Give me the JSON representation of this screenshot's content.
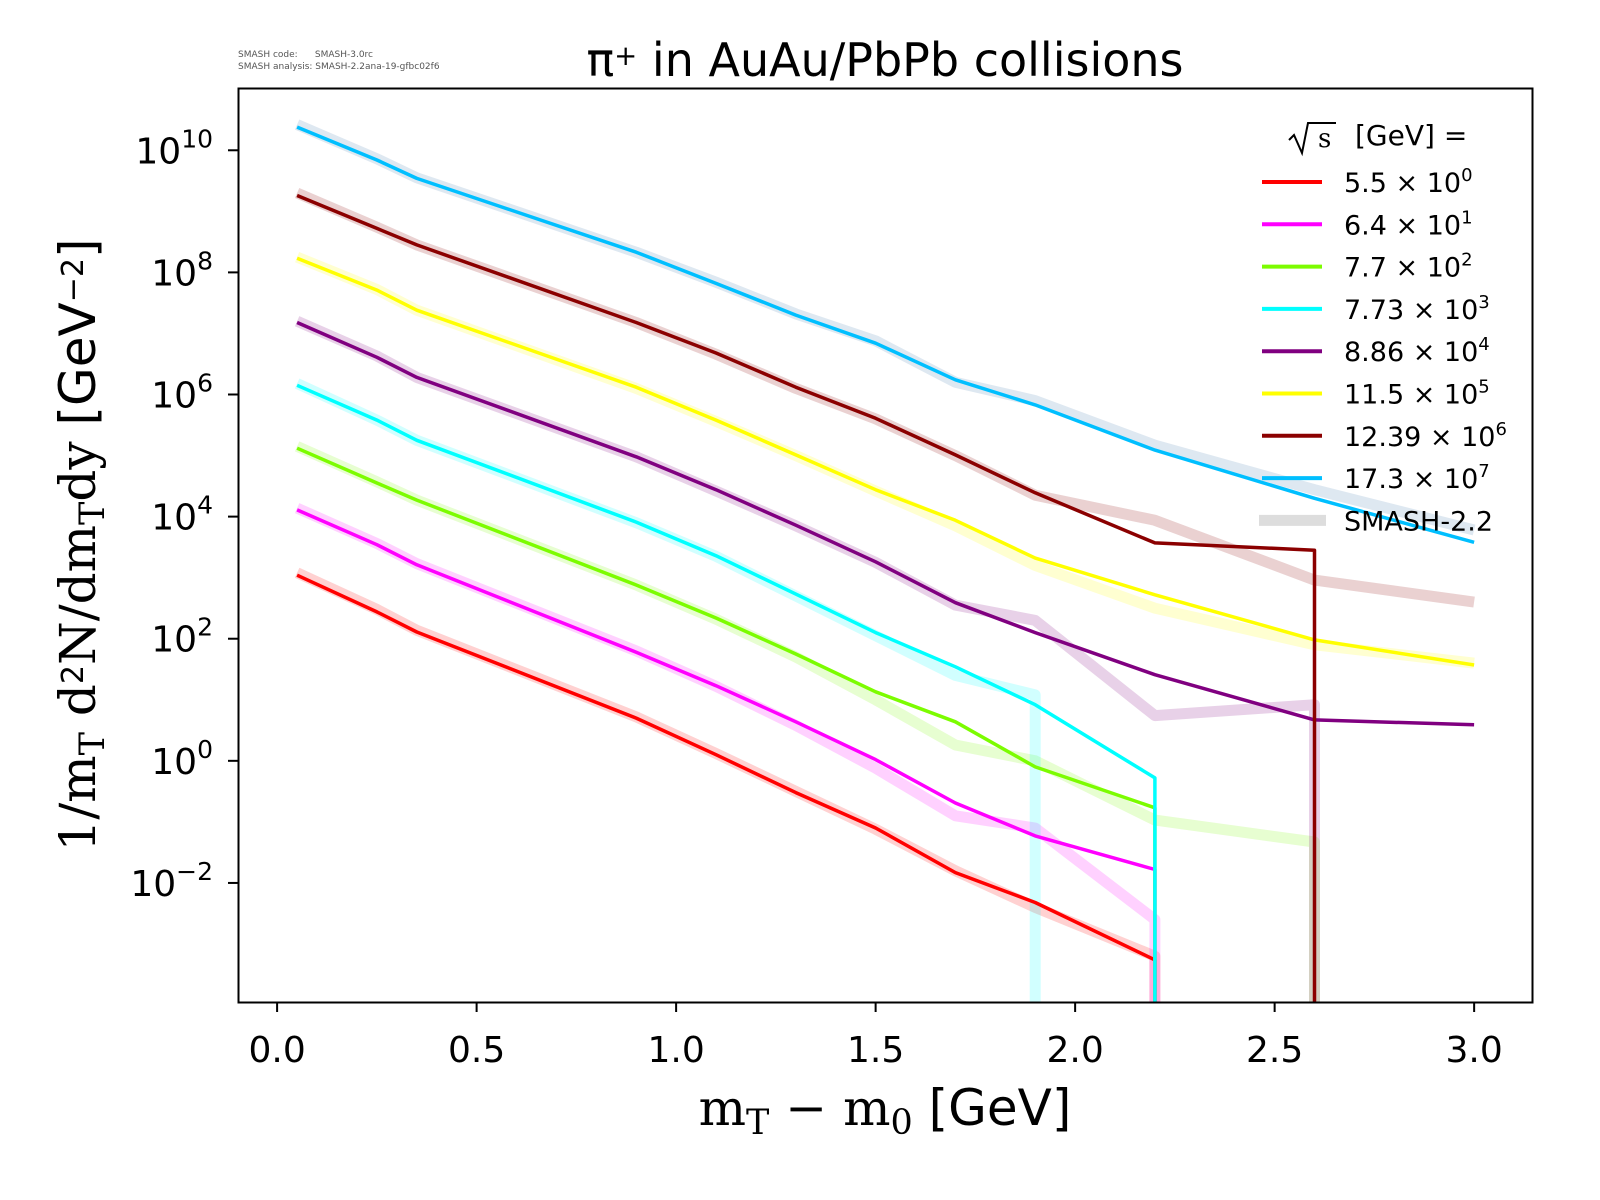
{
  "meta_lines": [
    "SMASH code:      SMASH-3.0rc",
    "SMASH analysis: SMASH-2.2ana-19-gfbc02f6"
  ],
  "chart_data": {
    "type": "line",
    "title": "π⁺ in AuAu/PbPb collisions",
    "title_parts": [
      {
        "t": "π",
        "s": ""
      },
      {
        "t": "+",
        "s": "sup"
      },
      {
        "t": " in AuAu/PbPb collisions",
        "s": ""
      }
    ],
    "xlabel": "mT − m0 [GeV]",
    "xlabel_parts": [
      {
        "t": "m",
        "s": "serif"
      },
      {
        "t": "T",
        "s": "sub"
      },
      {
        "t": " − ",
        "s": "serif"
      },
      {
        "t": "m",
        "s": "serif"
      },
      {
        "t": "0",
        "s": "sub"
      },
      {
        "t": " [GeV]",
        "s": ""
      }
    ],
    "ylabel": "1/mT d2N/dmTdy [GeV−2]",
    "ylabel_parts": [
      {
        "t": "1/m",
        "s": "serif"
      },
      {
        "t": "T",
        "s": "sub"
      },
      {
        "t": " d",
        "s": "serif"
      },
      {
        "t": "2",
        "s": "sup"
      },
      {
        "t": "N/dm",
        "s": "serif"
      },
      {
        "t": "T",
        "s": "sub"
      },
      {
        "t": "dy ",
        "s": "serif"
      },
      {
        "t": "[GeV",
        "s": ""
      },
      {
        "t": "−2",
        "s": "sup"
      },
      {
        "t": "]",
        "s": ""
      }
    ],
    "yscale": "log",
    "xlim": [
      -0.098,
      3.145
    ],
    "ylim_log10": [
      -3.95,
      11.02
    ],
    "xticks": [
      "0.0",
      "0.5",
      "1.0",
      "1.5",
      "2.0",
      "2.5",
      "3.0"
    ],
    "yticks_exp": [
      "−2",
      "0",
      "2",
      "4",
      "6",
      "8",
      "10"
    ],
    "ytick_base": "10",
    "grid": false,
    "legend_title": "[GeV] =",
    "legend_title_sqrt": "s",
    "legend_placement": "top-right",
    "x": [
      0.05,
      0.25,
      0.35,
      0.9,
      1.1,
      1.3,
      1.5,
      1.7,
      1.9,
      2.2,
      2.6,
      3.0
    ],
    "series": [
      {
        "name": "5.5 × 10^0",
        "mant": "5.5",
        "exp": "0",
        "color": "#ff0000",
        "log10_values": [
          3.04,
          2.44,
          2.11,
          0.7,
          0.1,
          -0.52,
          -1.1,
          -1.83,
          -2.32,
          -3.26,
          null,
          null
        ],
        "drops_to_zero": true
      },
      {
        "name": "6.4 × 10^1",
        "mant": "6.4",
        "exp": "1",
        "color": "#ff00ff",
        "log10_values": [
          4.11,
          3.54,
          3.21,
          1.78,
          1.23,
          0.64,
          0.02,
          -0.69,
          -1.23,
          -1.78,
          null,
          null
        ],
        "drops_to_zero": true
      },
      {
        "name": "7.7 × 10^2",
        "mant": "7.7",
        "exp": "2",
        "color": "#7cfc00",
        "log10_values": [
          5.12,
          4.55,
          4.27,
          2.88,
          2.34,
          1.75,
          1.13,
          0.64,
          -0.1,
          -0.77,
          null,
          null
        ],
        "drops_to_zero": true
      },
      {
        "name": "7.73 × 10^3",
        "mant": "7.73",
        "exp": "3",
        "color": "#00ffff",
        "log10_values": [
          6.15,
          5.58,
          5.25,
          3.91,
          3.36,
          2.73,
          2.1,
          1.54,
          0.92,
          -0.28,
          null,
          null
        ],
        "drops_to_zero": true
      },
      {
        "name": "8.86 × 10^4",
        "mant": "8.86",
        "exp": "4",
        "color": "#800080",
        "log10_values": [
          7.18,
          6.61,
          6.28,
          4.98,
          4.44,
          3.86,
          3.26,
          2.59,
          2.1,
          1.41,
          0.67,
          0.59
        ],
        "drops_to_zero": false
      },
      {
        "name": "11.5 × 10^5",
        "mant": "11.5",
        "exp": "5",
        "color": "#ffff00",
        "log10_values": [
          8.23,
          7.71,
          7.38,
          6.12,
          5.58,
          5.01,
          4.44,
          3.94,
          3.32,
          2.72,
          1.98,
          1.57
        ],
        "drops_to_zero": false
      },
      {
        "name": "12.39 × 10^6",
        "mant": "12.39",
        "exp": "6",
        "color": "#8b0000",
        "log10_values": [
          9.26,
          8.72,
          8.45,
          7.18,
          6.68,
          6.12,
          5.61,
          5.01,
          4.39,
          3.57,
          3.45,
          null
        ],
        "drops_to_zero": true
      },
      {
        "name": "17.3 × 10^7",
        "mant": "17.3",
        "exp": "7",
        "color": "#00bfff",
        "log10_values": [
          10.38,
          9.84,
          9.54,
          8.33,
          7.82,
          7.3,
          6.84,
          6.24,
          5.83,
          5.09,
          4.3,
          3.58
        ],
        "drops_to_zero": false
      }
    ],
    "reference": {
      "name": "SMASH-2.2",
      "legend_color": "#dddddd",
      "series": [
        {
          "color": "#ff0000",
          "log10_values": [
            3.08,
            2.48,
            2.14,
            0.72,
            0.12,
            -0.5,
            -1.12,
            -1.8,
            -2.4,
            -3.2,
            null,
            null
          ],
          "drops_to_zero": true
        },
        {
          "color": "#ff00ff",
          "log10_values": [
            4.14,
            3.56,
            3.23,
            1.8,
            1.22,
            0.58,
            -0.12,
            -0.9,
            -1.1,
            -2.6,
            null,
            null
          ],
          "drops_to_zero": true
        },
        {
          "color": "#7cfc00",
          "log10_values": [
            5.15,
            4.57,
            4.27,
            2.88,
            2.32,
            1.7,
            1.0,
            0.26,
            0.0,
            -0.97,
            -1.33,
            null
          ],
          "drops_to_zero": true
        },
        {
          "color": "#00ffff",
          "log10_values": [
            6.18,
            5.58,
            5.25,
            3.9,
            3.35,
            2.7,
            2.05,
            1.4,
            1.08,
            null,
            null,
            null
          ],
          "drops_to_zero": true
        },
        {
          "color": "#800080",
          "log10_values": [
            7.2,
            6.63,
            6.28,
            4.98,
            4.42,
            3.85,
            3.25,
            2.55,
            2.3,
            0.74,
            0.92,
            null
          ],
          "drops_to_zero": true
        },
        {
          "color": "#ffff00",
          "log10_values": [
            8.25,
            7.72,
            7.38,
            6.1,
            5.56,
            5.0,
            4.42,
            3.85,
            3.2,
            2.5,
            1.9,
            1.6
          ],
          "drops_to_zero": false
        },
        {
          "color": "#8b0000",
          "log10_values": [
            9.3,
            8.74,
            8.45,
            7.18,
            6.66,
            6.1,
            5.6,
            5.0,
            4.35,
            3.94,
            2.96,
            2.6
          ],
          "drops_to_zero": false
        },
        {
          "color": "#4682b4",
          "log10_values": [
            10.42,
            9.86,
            9.55,
            8.33,
            7.84,
            7.32,
            6.88,
            6.2,
            5.9,
            5.17,
            4.44,
            3.78
          ],
          "drops_to_zero": false
        }
      ]
    }
  }
}
